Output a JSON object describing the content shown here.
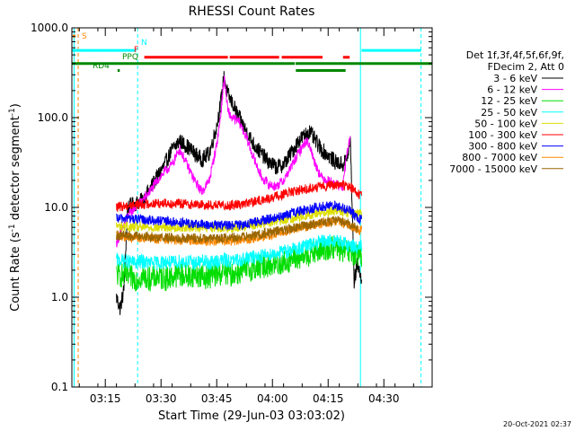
{
  "chart_data": {
    "type": "line",
    "title": "RHESSI Count Rates",
    "xlabel": "Start Time (29-Jun-03 03:03:02)",
    "ylabel_main": "Count Rate (s",
    "ylabel_sup1": "-1",
    "ylabel_mid": " detector segment",
    "ylabel_sup2": "-1",
    "ylabel_end": ")",
    "yscale": "log",
    "ylim": [
      0.1,
      1000
    ],
    "xlim_minutes": [
      3.0,
      100.0
    ],
    "x_unit": "minutes after 03:03:02",
    "y_ticks": [
      {
        "value": 0.1,
        "label": "0.1"
      },
      {
        "value": 1,
        "label": "1.0"
      },
      {
        "value": 10,
        "label": "10.0"
      },
      {
        "value": 100,
        "label": "100.0"
      },
      {
        "value": 1000,
        "label": "1000.0"
      }
    ],
    "x_ticks": [
      {
        "t": 12.0,
        "label": "03:15"
      },
      {
        "t": 27.0,
        "label": "03:30"
      },
      {
        "t": 42.0,
        "label": "03:45"
      },
      {
        "t": 57.0,
        "label": "04:00"
      },
      {
        "t": 72.0,
        "label": "04:15"
      },
      {
        "t": 87.0,
        "label": "04:30"
      }
    ],
    "legend": {
      "header1": "Det 1f,3f,4f,5f,6f,9f,",
      "header2": "FDecim 2, Att 0",
      "entries": [
        {
          "label": "3 - 6 keV",
          "color": "#000000"
        },
        {
          "label": "6 - 12 keV",
          "color": "#ff00ff"
        },
        {
          "label": "12 - 25 keV",
          "color": "#00dd00"
        },
        {
          "label": "25 - 50 keV",
          "color": "#00ffff"
        },
        {
          "label": "50 - 100 keV",
          "color": "#dddd00"
        },
        {
          "label": "100 - 300 keV",
          "color": "#ff0000"
        },
        {
          "label": "300 - 800 keV",
          "color": "#0000ff"
        },
        {
          "label": "800 - 7000 keV",
          "color": "#ff8800"
        },
        {
          "label": "7000 - 15000 keV",
          "color": "#996600"
        }
      ]
    },
    "series": [
      {
        "name": "3 - 6 keV",
        "color": "#000000",
        "points": [
          [
            15,
            1.0
          ],
          [
            16,
            0.75
          ],
          [
            17,
            1.2
          ],
          [
            18,
            10
          ],
          [
            20,
            11
          ],
          [
            22,
            12
          ],
          [
            24,
            16
          ],
          [
            26,
            22
          ],
          [
            28,
            30
          ],
          [
            30,
            44
          ],
          [
            32,
            55
          ],
          [
            34,
            48
          ],
          [
            36,
            40
          ],
          [
            38,
            34
          ],
          [
            40,
            40
          ],
          [
            42,
            80
          ],
          [
            43,
            140
          ],
          [
            44,
            290
          ],
          [
            45,
            180
          ],
          [
            46,
            150
          ],
          [
            48,
            100
          ],
          [
            50,
            70
          ],
          [
            52,
            50
          ],
          [
            54,
            40
          ],
          [
            56,
            32
          ],
          [
            58,
            28
          ],
          [
            60,
            30
          ],
          [
            62,
            40
          ],
          [
            64,
            55
          ],
          [
            66,
            65
          ],
          [
            67,
            70
          ],
          [
            68,
            60
          ],
          [
            70,
            45
          ],
          [
            72,
            38
          ],
          [
            74,
            32
          ],
          [
            76,
            30
          ],
          [
            77,
            35
          ],
          [
            78,
            55
          ],
          [
            79,
            1.5
          ],
          [
            80,
            2.5
          ],
          [
            81,
            1.4
          ]
        ]
      },
      {
        "name": "6 - 12 keV",
        "color": "#ff00ff",
        "points": [
          [
            15,
            4
          ],
          [
            18,
            8
          ],
          [
            20,
            10
          ],
          [
            22,
            12
          ],
          [
            24,
            15
          ],
          [
            26,
            20
          ],
          [
            28,
            25
          ],
          [
            30,
            30
          ],
          [
            32,
            45
          ],
          [
            34,
            30
          ],
          [
            36,
            20
          ],
          [
            38,
            15
          ],
          [
            40,
            20
          ],
          [
            42,
            50
          ],
          [
            43,
            100
          ],
          [
            44,
            280
          ],
          [
            45,
            120
          ],
          [
            46,
            100
          ],
          [
            48,
            90
          ],
          [
            50,
            60
          ],
          [
            52,
            35
          ],
          [
            54,
            22
          ],
          [
            56,
            18
          ],
          [
            58,
            17
          ],
          [
            60,
            20
          ],
          [
            62,
            28
          ],
          [
            64,
            40
          ],
          [
            66,
            55
          ],
          [
            67,
            50
          ],
          [
            68,
            35
          ],
          [
            70,
            22
          ],
          [
            72,
            20
          ],
          [
            74,
            18
          ],
          [
            76,
            17
          ],
          [
            77,
            40
          ],
          [
            78,
            60
          ]
        ]
      },
      {
        "name": "12 - 25 keV",
        "color": "#00dd00",
        "points": [
          [
            15,
            1.8
          ],
          [
            18,
            1.7
          ],
          [
            20,
            1.6
          ],
          [
            22,
            1.7
          ],
          [
            24,
            1.6
          ],
          [
            26,
            1.7
          ],
          [
            28,
            1.6
          ],
          [
            30,
            1.7
          ],
          [
            32,
            1.8
          ],
          [
            34,
            1.7
          ],
          [
            36,
            1.8
          ],
          [
            38,
            1.7
          ],
          [
            40,
            1.7
          ],
          [
            42,
            1.8
          ],
          [
            44,
            1.9
          ],
          [
            46,
            1.8
          ],
          [
            48,
            1.9
          ],
          [
            50,
            2.0
          ],
          [
            52,
            2.1
          ],
          [
            54,
            2.2
          ],
          [
            56,
            2.3
          ],
          [
            58,
            2.3
          ],
          [
            60,
            2.4
          ],
          [
            62,
            2.6
          ],
          [
            64,
            2.7
          ],
          [
            66,
            2.9
          ],
          [
            68,
            3.1
          ],
          [
            70,
            3.3
          ],
          [
            72,
            3.5
          ],
          [
            74,
            3.6
          ],
          [
            76,
            3.3
          ],
          [
            78,
            3.0
          ],
          [
            80,
            2.8
          ],
          [
            81,
            3.0
          ]
        ]
      },
      {
        "name": "25 - 50 keV",
        "color": "#00ffff",
        "points": [
          [
            15,
            2.6
          ],
          [
            18,
            2.5
          ],
          [
            20,
            2.4
          ],
          [
            22,
            2.5
          ],
          [
            24,
            2.4
          ],
          [
            26,
            2.4
          ],
          [
            28,
            2.5
          ],
          [
            30,
            2.4
          ],
          [
            32,
            2.5
          ],
          [
            34,
            2.5
          ],
          [
            36,
            2.4
          ],
          [
            38,
            2.5
          ],
          [
            40,
            2.4
          ],
          [
            42,
            2.5
          ],
          [
            44,
            2.6
          ],
          [
            46,
            2.5
          ],
          [
            48,
            2.6
          ],
          [
            50,
            2.7
          ],
          [
            52,
            2.8
          ],
          [
            54,
            2.9
          ],
          [
            56,
            3.0
          ],
          [
            58,
            3.1
          ],
          [
            60,
            3.2
          ],
          [
            62,
            3.4
          ],
          [
            64,
            3.5
          ],
          [
            66,
            3.7
          ],
          [
            68,
            3.9
          ],
          [
            70,
            4.1
          ],
          [
            72,
            4.2
          ],
          [
            74,
            4.3
          ],
          [
            76,
            4.0
          ],
          [
            78,
            3.8
          ],
          [
            80,
            3.6
          ],
          [
            81,
            3.7
          ]
        ]
      },
      {
        "name": "50 - 100 keV",
        "color": "#dddd00",
        "points": [
          [
            15,
            6.2
          ],
          [
            20,
            6.0
          ],
          [
            25,
            6.0
          ],
          [
            30,
            6.0
          ],
          [
            35,
            6.1
          ],
          [
            40,
            6.0
          ],
          [
            45,
            5.9
          ],
          [
            50,
            6.2
          ],
          [
            55,
            6.8
          ],
          [
            60,
            7.2
          ],
          [
            65,
            8.0
          ],
          [
            70,
            8.8
          ],
          [
            74,
            9.2
          ],
          [
            78,
            8.6
          ],
          [
            81,
            8.4
          ]
        ]
      },
      {
        "name": "100 - 300 keV",
        "color": "#ff0000",
        "points": [
          [
            15,
            10
          ],
          [
            18,
            10.5
          ],
          [
            20,
            10.8
          ],
          [
            24,
            11
          ],
          [
            28,
            11.2
          ],
          [
            32,
            11
          ],
          [
            36,
            10.8
          ],
          [
            40,
            10.6
          ],
          [
            44,
            10.5
          ],
          [
            48,
            10.8
          ],
          [
            52,
            11.5
          ],
          [
            56,
            12.5
          ],
          [
            60,
            14
          ],
          [
            64,
            15.5
          ],
          [
            68,
            16.5
          ],
          [
            72,
            17.5
          ],
          [
            75,
            18
          ],
          [
            78,
            17
          ],
          [
            80,
            14
          ],
          [
            81,
            14
          ]
        ]
      },
      {
        "name": "300 - 800 keV",
        "color": "#0000ff",
        "points": [
          [
            15,
            7.5
          ],
          [
            18,
            7.6
          ],
          [
            20,
            7.4
          ],
          [
            24,
            7.2
          ],
          [
            28,
            7.0
          ],
          [
            32,
            6.8
          ],
          [
            36,
            6.5
          ],
          [
            40,
            6.4
          ],
          [
            44,
            6.3
          ],
          [
            48,
            6.4
          ],
          [
            52,
            6.8
          ],
          [
            56,
            7.4
          ],
          [
            60,
            8.0
          ],
          [
            64,
            9.0
          ],
          [
            68,
            9.8
          ],
          [
            72,
            10.5
          ],
          [
            75,
            10.2
          ],
          [
            78,
            9.0
          ],
          [
            80,
            7.5
          ],
          [
            81,
            7.5
          ]
        ]
      },
      {
        "name": "800 - 7000 keV",
        "color": "#ff8800",
        "points": [
          [
            15,
            4.8
          ],
          [
            18,
            4.7
          ],
          [
            20,
            4.6
          ],
          [
            24,
            4.5
          ],
          [
            28,
            4.4
          ],
          [
            32,
            4.3
          ],
          [
            36,
            4.3
          ],
          [
            40,
            4.2
          ],
          [
            44,
            4.2
          ],
          [
            48,
            4.3
          ],
          [
            52,
            4.5
          ],
          [
            56,
            4.9
          ],
          [
            60,
            5.4
          ],
          [
            64,
            5.9
          ],
          [
            68,
            6.4
          ],
          [
            72,
            6.9
          ],
          [
            75,
            7.0
          ],
          [
            78,
            6.2
          ],
          [
            80,
            5.5
          ],
          [
            81,
            5.6
          ]
        ]
      },
      {
        "name": "7000 - 15000 keV",
        "color": "#996600",
        "points": [
          [
            15,
            4.9
          ],
          [
            20,
            4.8
          ],
          [
            30,
            4.6
          ],
          [
            40,
            4.5
          ],
          [
            50,
            4.7
          ],
          [
            60,
            5.6
          ],
          [
            70,
            6.8
          ],
          [
            75,
            7.2
          ],
          [
            80,
            5.8
          ]
        ]
      }
    ],
    "vertical_lines": [
      {
        "t": 3.6,
        "color": "#00ffff",
        "style": "solid"
      },
      {
        "t": 4.7,
        "color": "#ff8800",
        "style": "dashed"
      },
      {
        "t": 20.7,
        "color": "#00ffff",
        "style": "dashed"
      },
      {
        "t": 80.7,
        "color": "#00ffff",
        "style": "solid"
      },
      {
        "t": 97.0,
        "color": "#00ffff",
        "style": "dashed"
      }
    ],
    "flag_bars": [
      {
        "label": "S",
        "color": "#ff8800",
        "y": 700,
        "segments": []
      },
      {
        "label": "N",
        "color": "#00ffff",
        "y": 560,
        "segments": [
          [
            3.0,
            20.3
          ],
          [
            81.0,
            97.0
          ]
        ]
      },
      {
        "label": "F",
        "color": "#ff0000",
        "y": 470,
        "segments": [
          [
            22.5,
            45.0
          ],
          [
            45.5,
            58.8
          ],
          [
            59.5,
            70.5
          ],
          [
            76.0,
            77.8
          ]
        ]
      },
      {
        "label": "PPQ",
        "color": "#008800",
        "y": 400,
        "segments": [
          [
            3.0,
            63.0
          ],
          [
            63.2,
            100.0
          ]
        ]
      },
      {
        "label": "RD4",
        "color": "#008800",
        "y": 335,
        "segments": [
          [
            15.3,
            15.9
          ],
          [
            63.3,
            76.7
          ]
        ]
      }
    ],
    "footer_date": "20-Oct-2021 02:37"
  }
}
